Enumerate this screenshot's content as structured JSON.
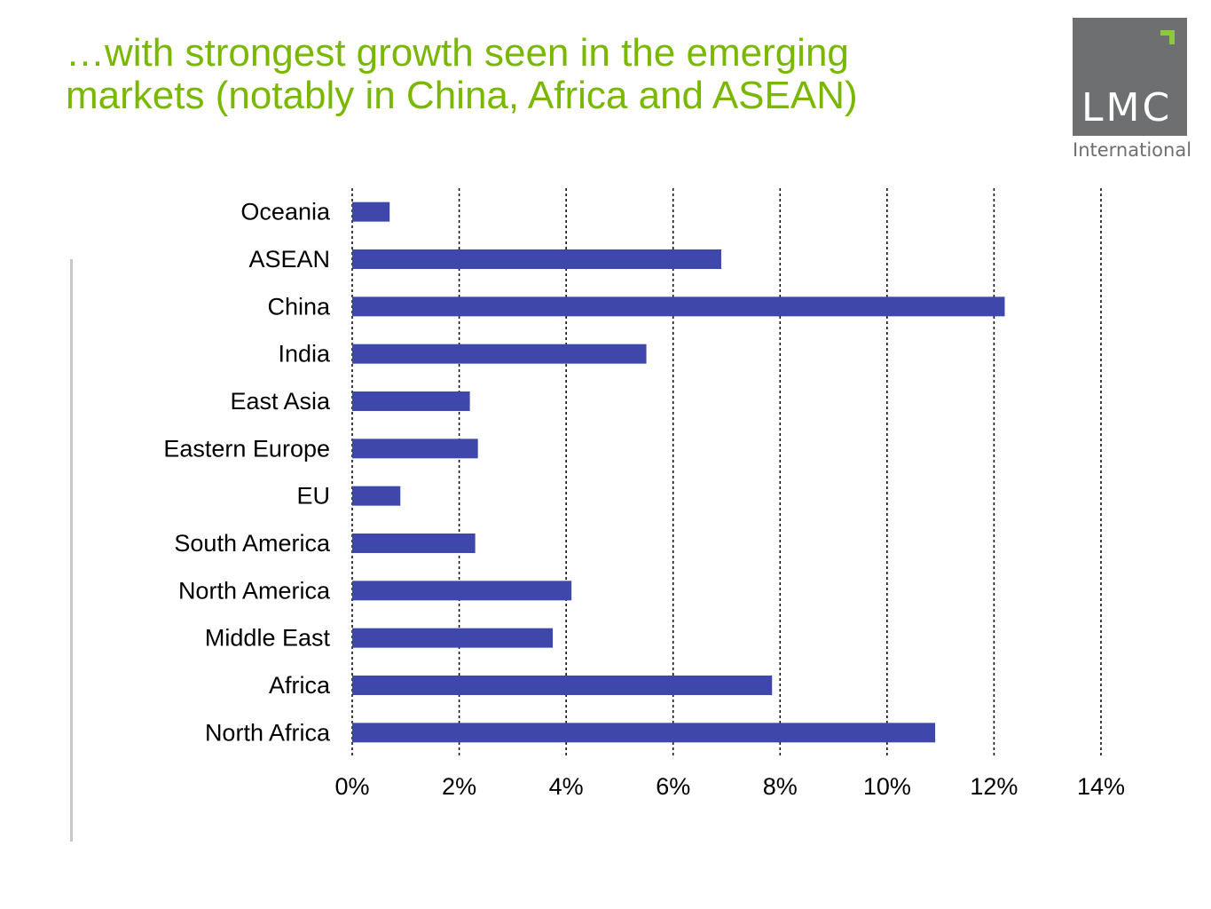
{
  "header": {
    "title_line1": "…with strongest growth seen in the emerging",
    "title_line2": "markets (notably in China, Africa and ASEAN)"
  },
  "logo": {
    "text": "LMC",
    "subtext": "International",
    "box_color": "#6d6f70",
    "accent_color": "#8dc63f"
  },
  "colors": {
    "title": "#7ab800",
    "bar": "#3f48aa"
  },
  "chart_data": {
    "type": "bar",
    "orientation": "horizontal",
    "categories": [
      "Oceania",
      "ASEAN",
      "China",
      "India",
      "East Asia",
      "Eastern Europe",
      "EU",
      "South America",
      "North America",
      "Middle East",
      "Africa",
      "North Africa"
    ],
    "values": [
      0.7,
      6.9,
      12.2,
      5.5,
      2.2,
      2.35,
      0.9,
      2.3,
      4.1,
      3.75,
      7.85,
      10.9
    ],
    "xlim": [
      0,
      14
    ],
    "ticks": [
      "0%",
      "2%",
      "4%",
      "6%",
      "8%",
      "10%",
      "12%",
      "14%"
    ],
    "grid": "vertical dashed",
    "legend": "none",
    "title": "",
    "xlabel": "",
    "ylabel": ""
  }
}
